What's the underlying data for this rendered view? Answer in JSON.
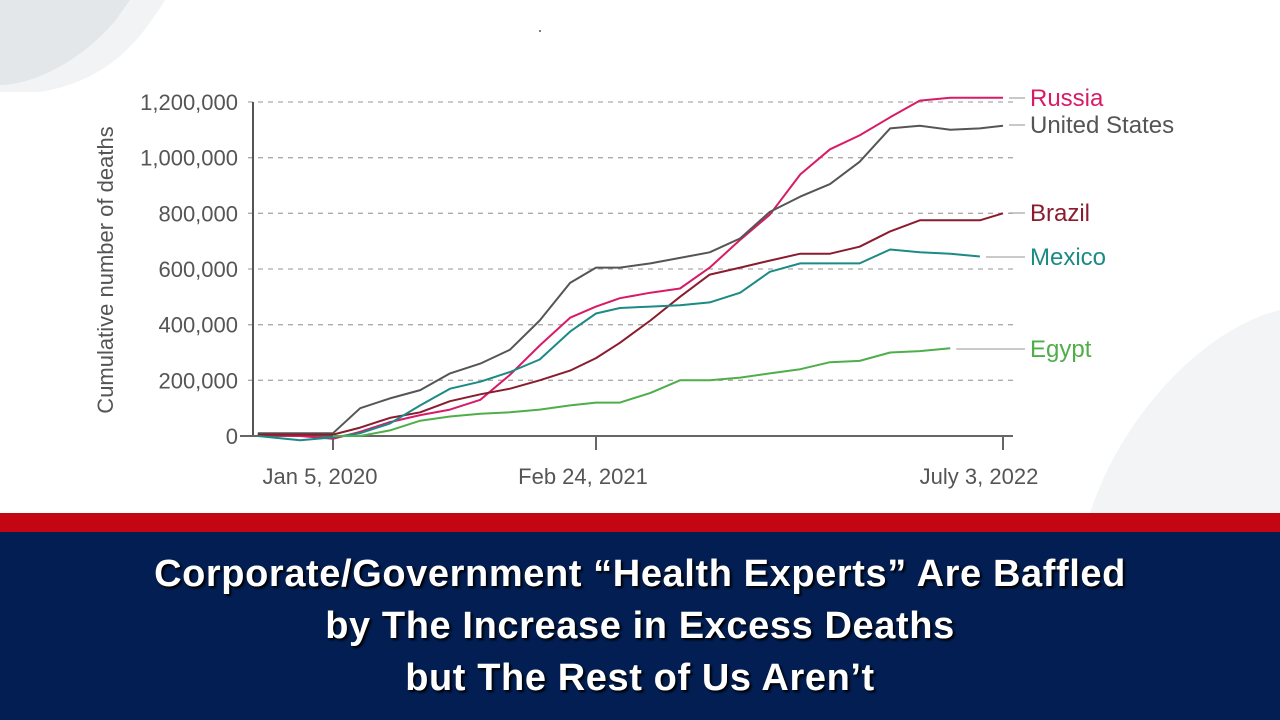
{
  "chart_data": {
    "type": "line",
    "ylabel": "Cumulative number of deaths",
    "xlabel": "",
    "ylim": [
      0,
      1200000
    ],
    "y_ticks": [
      0,
      200000,
      400000,
      600000,
      800000,
      1000000,
      1200000
    ],
    "y_tick_labels": [
      "0",
      "200,000",
      "400,000",
      "600,000",
      "800,000",
      "1,000,000",
      "1,200,000"
    ],
    "x_ticks": [
      "2020-01-05",
      "2021-02-24",
      "2022-07-03"
    ],
    "x_tick_labels": [
      "Jan 5, 2020",
      "Feb 24, 2021",
      "July 3, 2022"
    ],
    "grid": "horizontal dashed",
    "legend": "direct labels at right",
    "x": [
      "2019-09-08",
      "2019-11-14",
      "2020-01-05",
      "2020-02-17",
      "2020-04-04",
      "2020-05-22",
      "2020-07-08",
      "2020-08-25",
      "2020-10-11",
      "2020-11-27",
      "2021-01-14",
      "2021-02-24",
      "2021-03-25",
      "2021-05-01",
      "2021-06-06",
      "2021-07-12",
      "2021-08-18",
      "2021-09-23",
      "2021-10-30",
      "2021-12-05",
      "2022-01-10",
      "2022-02-16",
      "2022-03-24",
      "2022-04-30",
      "2022-06-05",
      "2022-07-03"
    ],
    "series": [
      {
        "name": "Russia",
        "color": "#d81b66",
        "values": [
          5000,
          0,
          -10000,
          15000,
          50000,
          75000,
          95000,
          130000,
          220000,
          325000,
          425000,
          465000,
          495000,
          515000,
          530000,
          605000,
          705000,
          795000,
          940000,
          1030000,
          1080000,
          1145000,
          1205000,
          1215000,
          1215000,
          1215000
        ]
      },
      {
        "name": "United States",
        "color": "#555555",
        "values": [
          10000,
          10000,
          10000,
          100000,
          135000,
          165000,
          225000,
          260000,
          310000,
          415000,
          550000,
          605000,
          605000,
          620000,
          640000,
          660000,
          710000,
          805000,
          860000,
          905000,
          985000,
          1105000,
          1115000,
          1100000,
          1105000,
          1115000
        ]
      },
      {
        "name": "Brazil",
        "color": "#8a1c2e",
        "values": [
          5000,
          5000,
          5000,
          30000,
          65000,
          85000,
          125000,
          150000,
          170000,
          200000,
          235000,
          280000,
          335000,
          415000,
          500000,
          580000,
          605000,
          630000,
          655000,
          655000,
          680000,
          735000,
          775000,
          775000,
          775000,
          800000
        ]
      },
      {
        "name": "Mexico",
        "color": "#1c8a85",
        "values": [
          0,
          -15000,
          -5000,
          10000,
          45000,
          110000,
          170000,
          195000,
          230000,
          275000,
          375000,
          440000,
          460000,
          465000,
          470000,
          480000,
          515000,
          590000,
          620000,
          620000,
          620000,
          670000,
          660000,
          655000,
          645000,
          null
        ]
      },
      {
        "name": "Egypt",
        "color": "#4fae4a",
        "values": [
          null,
          null,
          0,
          0,
          20000,
          55000,
          70000,
          80000,
          85000,
          95000,
          110000,
          120000,
          120000,
          155000,
          200000,
          200000,
          210000,
          225000,
          240000,
          265000,
          270000,
          300000,
          305000,
          315000,
          null,
          null
        ]
      }
    ]
  },
  "banner": {
    "lines": [
      "Corporate/Government “Health Experts” Are Baffled",
      "by The Increase in Excess Deaths",
      "but The Rest of Us Aren’t"
    ],
    "colors": {
      "stripe": "#c40612",
      "background": "#021e52",
      "text": "#ffffff"
    }
  }
}
